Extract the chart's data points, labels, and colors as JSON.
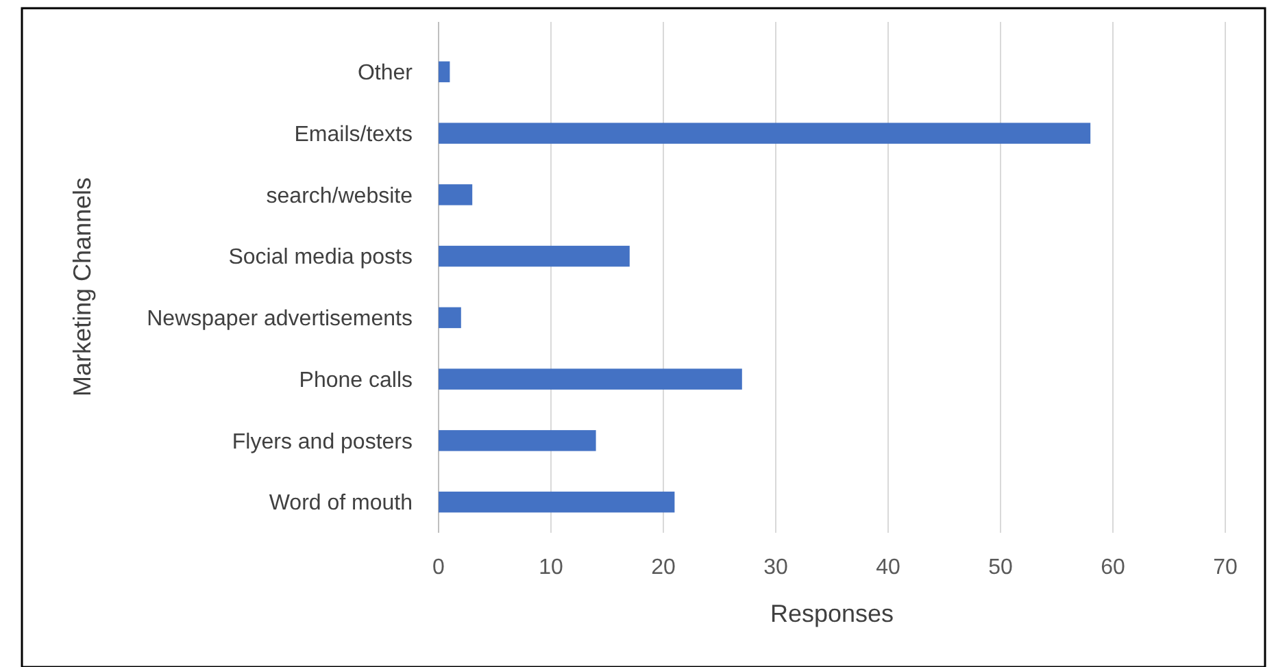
{
  "chart_data": {
    "type": "bar",
    "orientation": "horizontal",
    "xlabel": "Responses",
    "ylabel": "Marketing Channels",
    "categories": [
      "Other",
      "Emails/texts",
      "search/website",
      "Social media posts",
      "Newspaper advertisements",
      "Phone calls",
      "Flyers and posters",
      "Word of mouth"
    ],
    "values": [
      1,
      58,
      3,
      17,
      2,
      27,
      14,
      21
    ],
    "color": "#4472c4",
    "xlim": [
      0,
      70
    ],
    "xticks": [
      0,
      10,
      20,
      30,
      40,
      50,
      60,
      70
    ],
    "grid": "x"
  }
}
